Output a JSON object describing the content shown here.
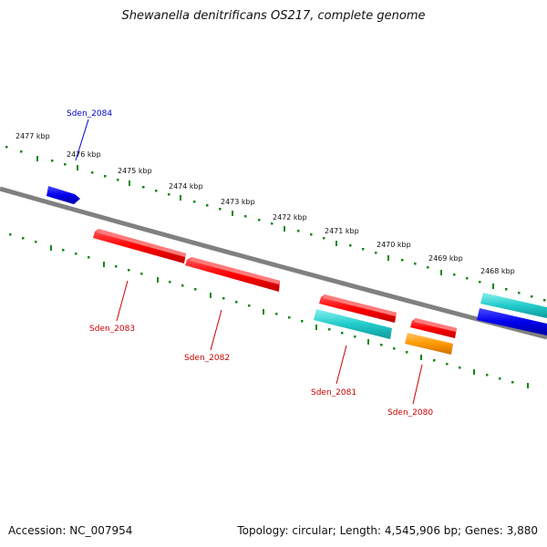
{
  "title": "Shewanella denitrificans OS217, complete genome",
  "footer": {
    "accession": "Accession: NC_007954",
    "summary": "Topology: circular; Length: 4,545,906 bp; Genes: 3,880"
  },
  "colors": {
    "backbone": "#808080",
    "ticks": "#118811",
    "red": "#ff0000",
    "blue": "#0000ee",
    "cyan": "#22cccc",
    "orange": "#ff9900",
    "label_blue": "#0000cc",
    "label_red": "#cc0000"
  },
  "kbp_labels": [
    "2477 kbp",
    "2476 kbp",
    "2475 kbp",
    "2474 kbp",
    "2473 kbp",
    "2472 kbp",
    "2471 kbp",
    "2470 kbp",
    "2469 kbp",
    "2468 kbp"
  ],
  "genes": [
    {
      "label": "Sden_2084"
    },
    {
      "label": "Sden_2083"
    },
    {
      "label": "Sden_2082"
    },
    {
      "label": "Sden_2081"
    },
    {
      "label": "Sden_2080"
    }
  ]
}
